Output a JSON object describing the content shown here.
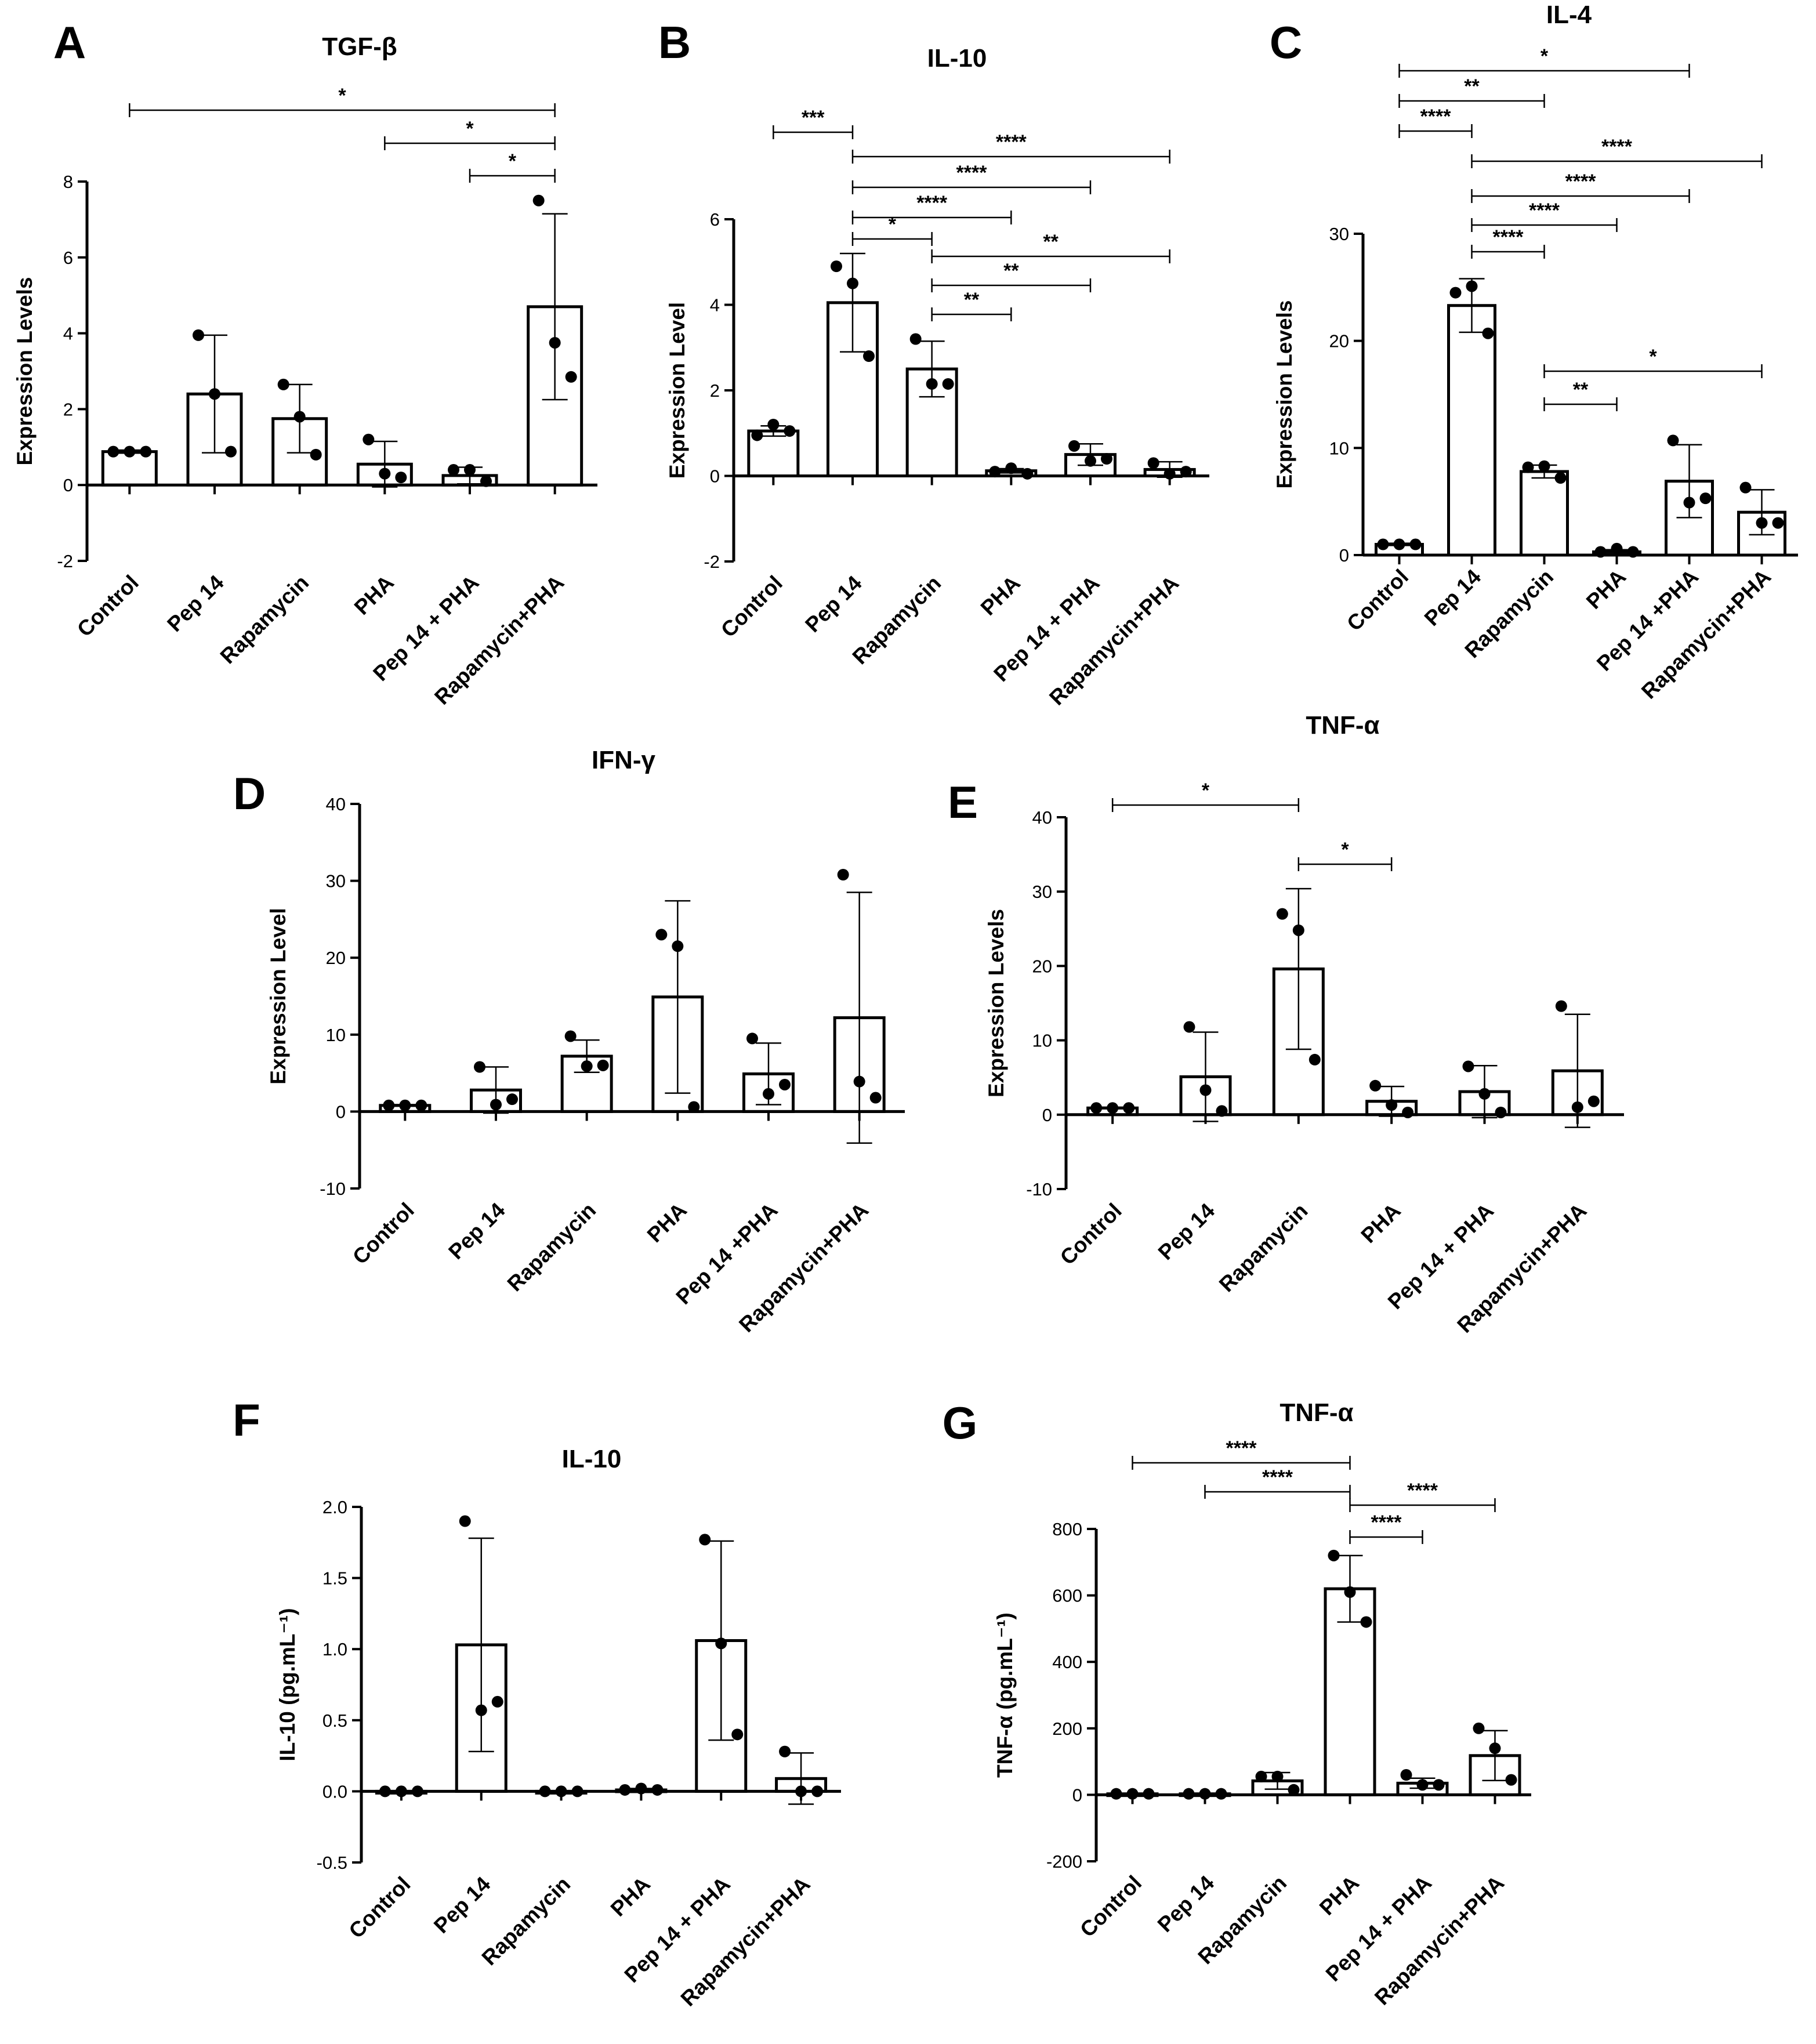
{
  "figure": {
    "panel_count": 7
  },
  "chart_data": [
    {
      "panel": "A",
      "type": "bar",
      "title": "TGF-β",
      "ylabel": "Expression Levels",
      "xlabel": "",
      "ylim": [
        -2,
        8
      ],
      "yticks": [
        -2,
        0,
        2,
        4,
        6,
        8
      ],
      "categories": [
        "Control",
        "Pep 14",
        "Rapamycin",
        "PHA",
        "Pep 14 + PHA",
        "Rapamycin+PHA"
      ],
      "values": [
        0.88,
        2.4,
        1.75,
        0.55,
        0.25,
        4.7
      ],
      "errors": [
        0.04,
        1.55,
        0.9,
        0.6,
        0.22,
        2.45
      ],
      "points": [
        [
          0.88,
          0.88,
          0.88
        ],
        [
          3.95,
          2.4,
          0.88
        ],
        [
          2.65,
          1.8,
          0.8
        ],
        [
          1.2,
          0.3,
          0.2
        ],
        [
          0.4,
          0.4,
          0.1
        ],
        [
          7.5,
          3.75,
          2.85
        ]
      ],
      "significance": [
        {
          "from": 0,
          "to": 5,
          "label": "*"
        },
        {
          "from": 3,
          "to": 5,
          "label": "*"
        },
        {
          "from": 4,
          "to": 5,
          "label": "*"
        }
      ]
    },
    {
      "panel": "B",
      "type": "bar",
      "title": "IL-10",
      "ylabel": "Expression Level",
      "xlabel": "",
      "ylim": [
        -2,
        6
      ],
      "yticks": [
        -2,
        0,
        2,
        4,
        6
      ],
      "categories": [
        "Control",
        "Pep 14",
        "Rapamycin",
        "PHA",
        "Pep 14 + PHA",
        "Rapamycin+PHA"
      ],
      "values": [
        1.05,
        4.05,
        2.5,
        0.12,
        0.5,
        0.15
      ],
      "errors": [
        0.12,
        1.15,
        0.65,
        0.05,
        0.25,
        0.18
      ],
      "points": [
        [
          0.95,
          1.2,
          1.05
        ],
        [
          4.9,
          4.5,
          2.8
        ],
        [
          3.2,
          2.15,
          2.15
        ],
        [
          0.1,
          0.18,
          0.05
        ],
        [
          0.7,
          0.35,
          0.4
        ],
        [
          0.3,
          0.05,
          0.1
        ]
      ],
      "significance": [
        {
          "from": 0,
          "to": 1,
          "label": "***"
        },
        {
          "from": 1,
          "to": 5,
          "label": "****"
        },
        {
          "from": 1,
          "to": 4,
          "label": "****"
        },
        {
          "from": 1,
          "to": 3,
          "label": "****"
        },
        {
          "from": 1,
          "to": 2,
          "label": "*"
        },
        {
          "from": 2,
          "to": 5,
          "label": "**"
        },
        {
          "from": 2,
          "to": 4,
          "label": "**"
        },
        {
          "from": 2,
          "to": 3,
          "label": "**"
        }
      ]
    },
    {
      "panel": "C",
      "type": "bar",
      "title": "IL-4",
      "ylabel": "Expression Levels",
      "xlabel": "",
      "ylim": [
        0,
        30
      ],
      "yticks": [
        0,
        10,
        20,
        30
      ],
      "categories": [
        "Control",
        "Pep 14",
        "Rapamycin",
        "PHA",
        "Pep 14 +PHA",
        "Rapamycin+PHA"
      ],
      "values": [
        1.0,
        23.3,
        7.8,
        0.3,
        6.9,
        4.0
      ],
      "errors": [
        0.1,
        2.5,
        0.6,
        0.2,
        3.4,
        2.1
      ],
      "points": [
        [
          1.0,
          1.0,
          1.0
        ],
        [
          24.5,
          25.1,
          20.7
        ],
        [
          8.2,
          8.3,
          7.2
        ],
        [
          0.3,
          0.6,
          0.3
        ],
        [
          10.7,
          4.9,
          5.3
        ],
        [
          6.3,
          3.0,
          3.0
        ]
      ],
      "significance": [
        {
          "from": 0,
          "to": 4,
          "label": "*"
        },
        {
          "from": 0,
          "to": 2,
          "label": "**"
        },
        {
          "from": 0,
          "to": 1,
          "label": "****"
        },
        {
          "from": 1,
          "to": 5,
          "label": "****"
        },
        {
          "from": 1,
          "to": 4,
          "label": "****"
        },
        {
          "from": 1,
          "to": 3,
          "label": "****"
        },
        {
          "from": 1,
          "to": 2,
          "label": "****"
        },
        {
          "from": 2,
          "to": 5,
          "label": "*"
        },
        {
          "from": 2,
          "to": 3,
          "label": "**"
        }
      ]
    },
    {
      "panel": "D",
      "type": "bar",
      "title": "IFN-γ",
      "ylabel": "Expression Level",
      "xlabel": "",
      "ylim": [
        -10,
        40
      ],
      "yticks": [
        -10,
        0,
        10,
        20,
        30,
        40
      ],
      "categories": [
        "Control",
        "Pep 14",
        "Rapamycin",
        "PHA",
        "Pep 14 +PHA",
        "Rapamycin+PHA"
      ],
      "values": [
        0.8,
        2.8,
        7.2,
        14.9,
        4.9,
        12.2
      ],
      "errors": [
        0.1,
        3.0,
        2.1,
        12.5,
        4.0,
        16.3
      ],
      "points": [
        [
          0.8,
          0.8,
          0.8
        ],
        [
          5.8,
          0.9,
          1.6
        ],
        [
          9.8,
          5.9,
          6.0
        ],
        [
          23.0,
          21.5,
          0.6
        ],
        [
          9.5,
          2.3,
          3.5
        ],
        [
          30.8,
          3.9,
          1.8
        ]
      ],
      "significance": []
    },
    {
      "panel": "E",
      "type": "bar",
      "title": "TNF-α",
      "ylabel": "Expression Levels",
      "xlabel": "",
      "ylim": [
        -10,
        40
      ],
      "yticks": [
        -10,
        0,
        10,
        20,
        30,
        40
      ],
      "categories": [
        "Control",
        "Pep 14",
        "Rapamycin",
        "PHA",
        "Pep 14 + PHA",
        "Rapamycin+PHA"
      ],
      "values": [
        0.9,
        5.1,
        19.6,
        1.8,
        3.1,
        5.9
      ],
      "errors": [
        0.1,
        6.0,
        10.8,
        2.0,
        3.5,
        7.6
      ],
      "points": [
        [
          0.9,
          0.9,
          0.9
        ],
        [
          11.8,
          3.3,
          0.5
        ],
        [
          27.0,
          24.8,
          7.4
        ],
        [
          3.9,
          1.3,
          0.3
        ],
        [
          6.5,
          2.8,
          0.3
        ],
        [
          14.6,
          1.0,
          1.8
        ]
      ],
      "significance": [
        {
          "from": 0,
          "to": 2,
          "label": "*"
        },
        {
          "from": 2,
          "to": 3,
          "label": "*"
        }
      ]
    },
    {
      "panel": "F",
      "type": "bar",
      "title": "IL-10",
      "ylabel": "IL-10 (pg.mL⁻¹)",
      "xlabel": "",
      "ylim": [
        -0.5,
        2.0
      ],
      "yticks": [
        -0.5,
        0.0,
        0.5,
        1.0,
        1.5,
        2.0
      ],
      "categories": [
        "Control",
        "Pep 14",
        "Rapamycin",
        "PHA",
        "Pep 14 + PHA",
        "Rapamycin+PHA"
      ],
      "values": [
        0.0,
        1.03,
        0.0,
        0.01,
        1.06,
        0.09
      ],
      "errors": [
        0.0,
        0.75,
        0.0,
        0.01,
        0.7,
        0.18
      ],
      "points": [
        [
          0.0,
          0.0,
          0.0
        ],
        [
          1.9,
          0.57,
          0.63
        ],
        [
          0.0,
          0.0,
          0.0
        ],
        [
          0.01,
          0.02,
          0.01
        ],
        [
          1.77,
          1.04,
          0.4
        ],
        [
          0.28,
          0.0,
          0.0
        ]
      ],
      "significance": []
    },
    {
      "panel": "G",
      "type": "bar",
      "title": "TNF-α",
      "ylabel": "TNF-α (pg.mL⁻¹)",
      "xlabel": "",
      "ylim": [
        -200,
        800
      ],
      "yticks": [
        -200,
        0,
        200,
        400,
        600,
        800
      ],
      "categories": [
        "Control",
        "Pep 14",
        "Rapamycin",
        "PHA",
        "Pep 14 + PHA",
        "Rapamycin+PHA"
      ],
      "values": [
        3,
        3,
        42,
        620,
        35,
        118
      ],
      "errors": [
        1,
        1,
        25,
        100,
        15,
        75
      ],
      "points": [
        [
          3,
          3,
          3
        ],
        [
          3,
          3,
          3
        ],
        [
          55,
          55,
          15
        ],
        [
          720,
          610,
          520
        ],
        [
          60,
          30,
          30
        ],
        [
          200,
          140,
          45
        ]
      ],
      "significance": [
        {
          "from": 0,
          "to": 3,
          "label": "****"
        },
        {
          "from": 1,
          "to": 3,
          "label": "****"
        },
        {
          "from": 3,
          "to": 5,
          "label": "****"
        },
        {
          "from": 3,
          "to": 4,
          "label": "****"
        }
      ]
    }
  ]
}
